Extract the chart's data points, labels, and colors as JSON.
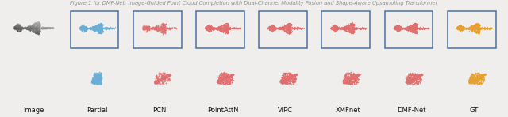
{
  "title_text": "Figure 1 for DMF-Net: Image-Guided Point Cloud Completion with Dual-Channel Modality Fusion and Shape-Aware Upsampling Transformer",
  "labels": [
    "Image",
    "Partial",
    "PCN",
    "PointAttN",
    "ViPC",
    "XMFnet",
    "DMF-Net",
    "GT"
  ],
  "figsize": [
    6.4,
    1.48
  ],
  "dpi": 100,
  "fig_bg": "#f0eeec",
  "panel_bg": "#e8e5e2",
  "white_bg": "#ffffff",
  "blue_color": "#6aaed6",
  "red_color": "#e07070",
  "orange_color": "#e8a030",
  "gray_dark": "#888888",
  "box_color": "#4a72a0",
  "label_fontsize": 6.0,
  "title_fontsize": 4.8
}
